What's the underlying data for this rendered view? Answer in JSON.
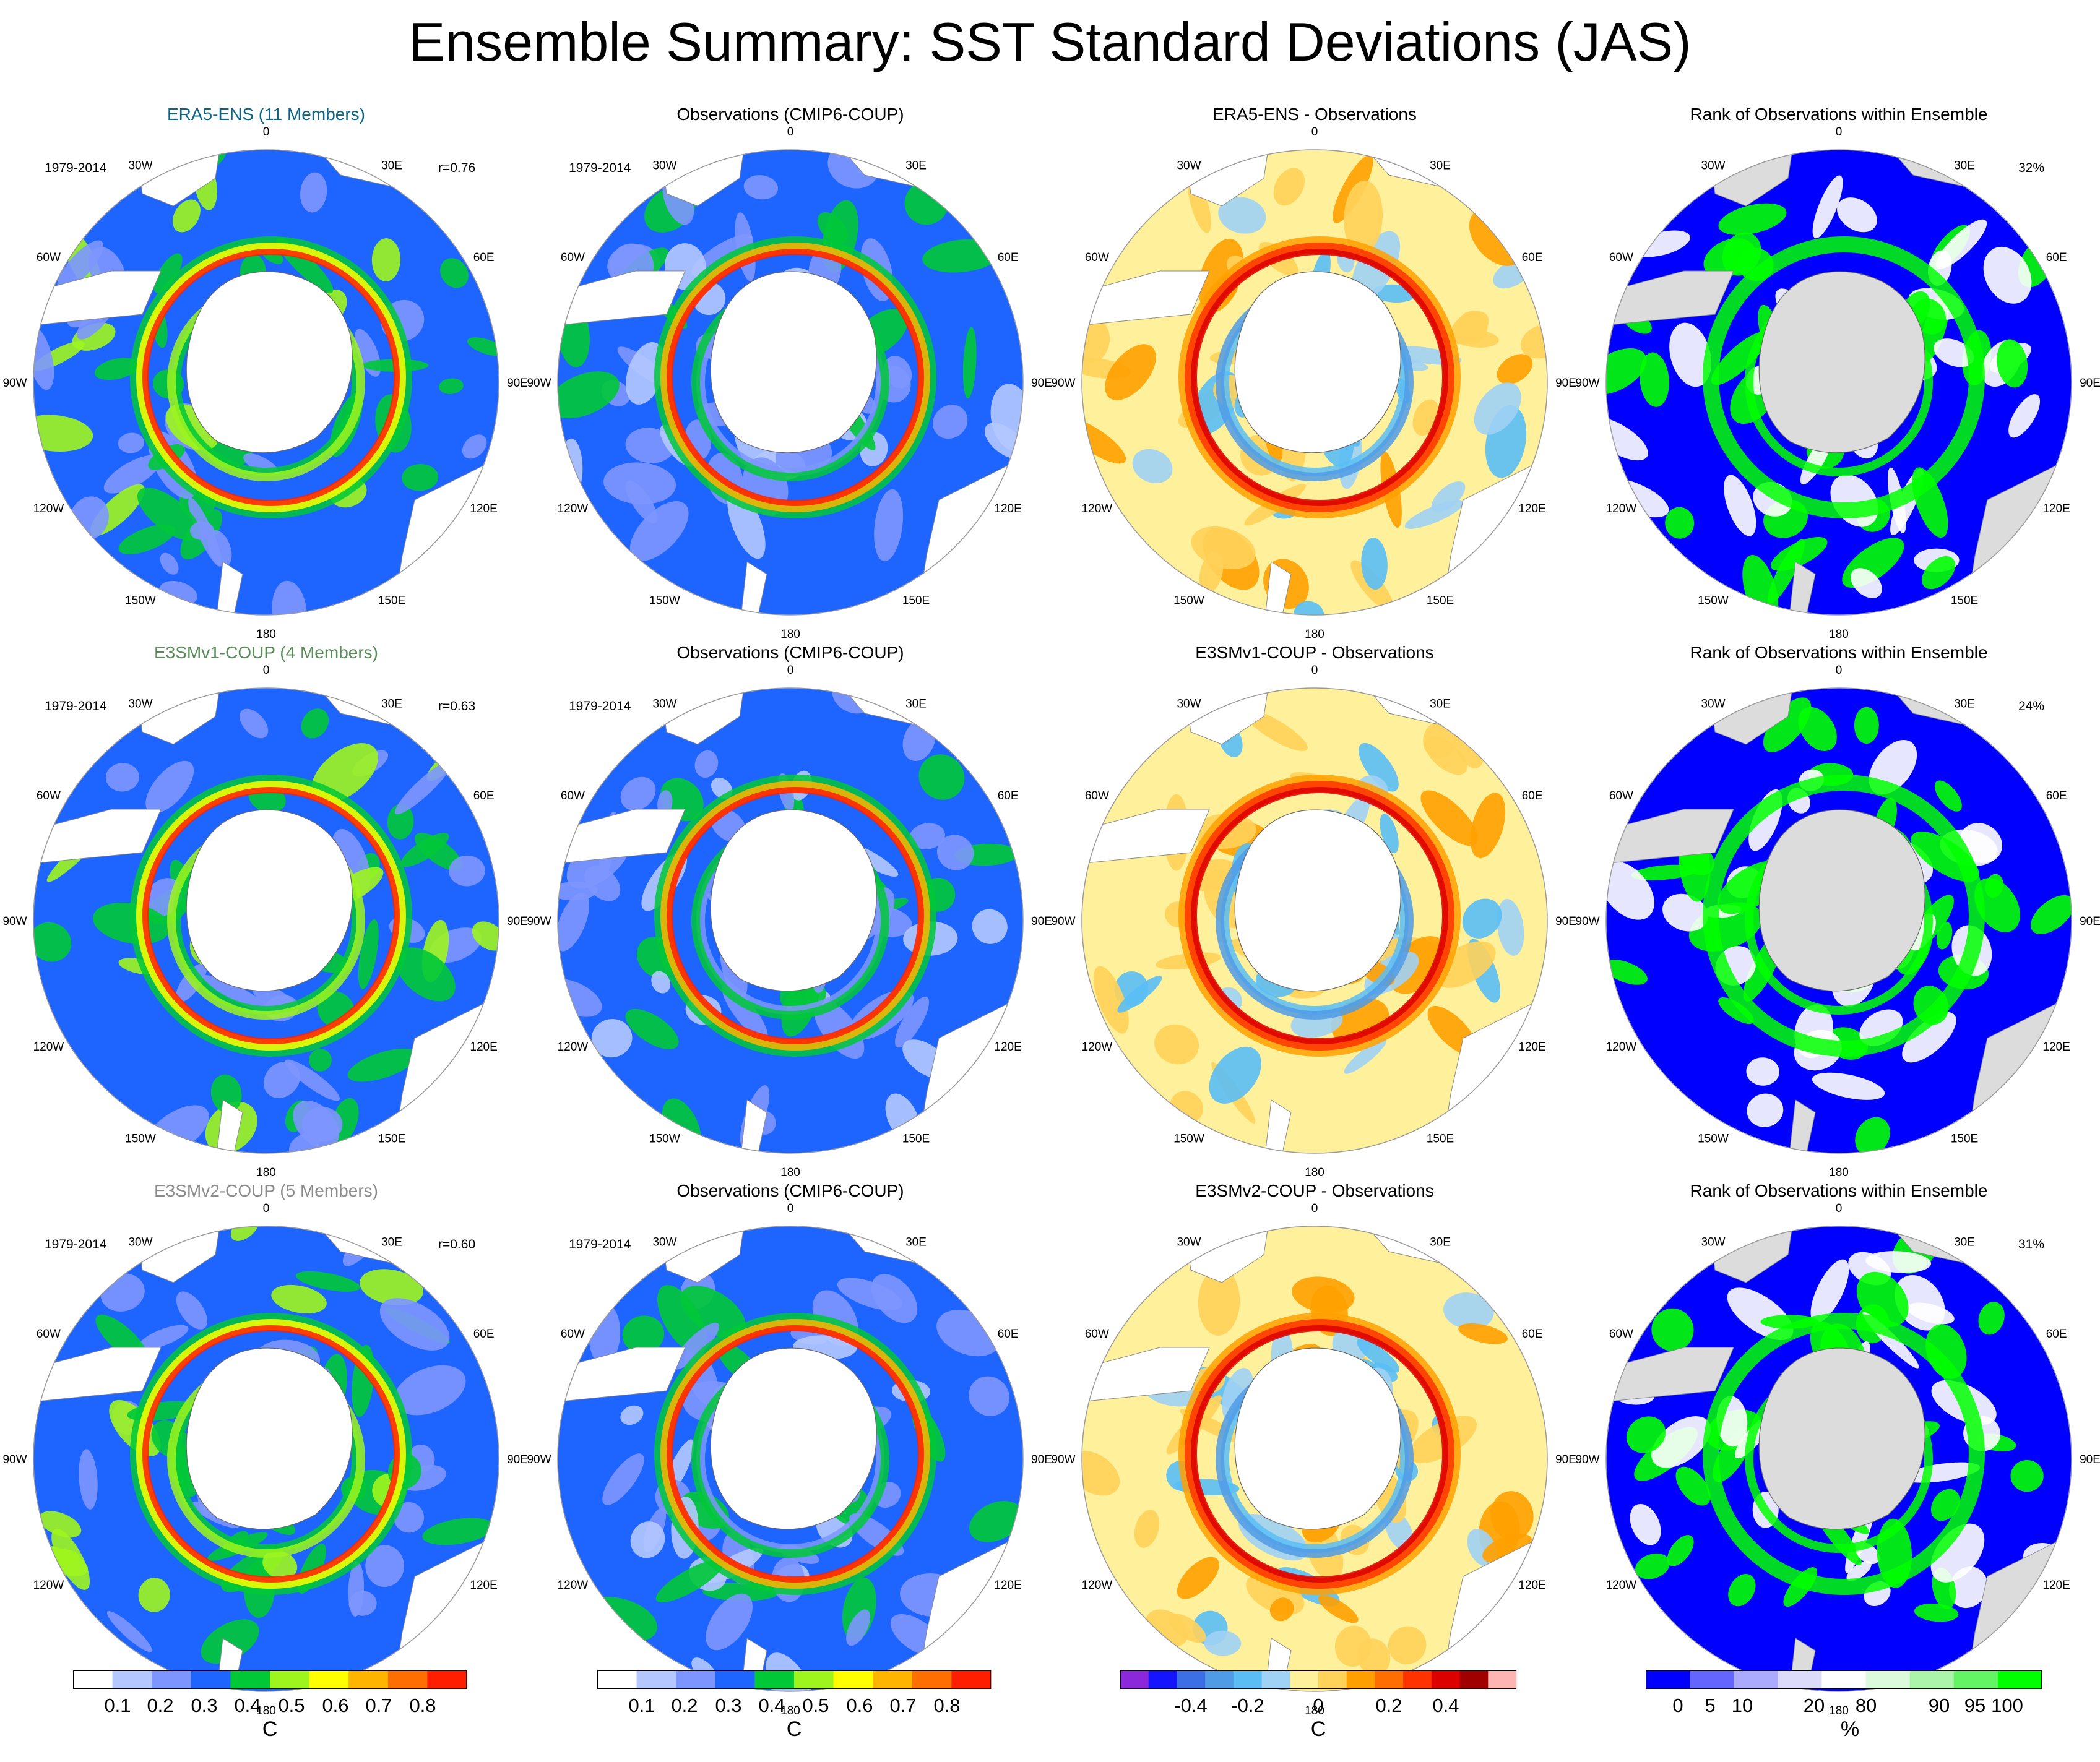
{
  "figure": {
    "title": "Ensemble Summary: SST Standard Deviations (JAS)"
  },
  "labels": {
    "lon": [
      "0",
      "30E",
      "60E",
      "90E",
      "120E",
      "150E",
      "180",
      "150W",
      "120W",
      "90W",
      "60W",
      "30W"
    ]
  },
  "palettes": {
    "sd": [
      "#ffffff",
      "#b4c8ff",
      "#7d96ff",
      "#1e64ff",
      "#00c837",
      "#9ef51e",
      "#ffff00",
      "#ffb400",
      "#ff6e00",
      "#ff1e00"
    ],
    "diff": [
      "#8c28dc",
      "#1414ff",
      "#3c6ee6",
      "#509be6",
      "#5abef5",
      "#a0d2f5",
      "#fff09b",
      "#ffd25a",
      "#ffa000",
      "#ff6e00",
      "#ff3200",
      "#dc0000",
      "#a00000",
      "#ffb4b4"
    ],
    "rank": [
      "#0000ff",
      "#6464ff",
      "#aaaaff",
      "#dcdcfa",
      "#ffffff",
      "#dcfadc",
      "#aaf5aa",
      "#64f564",
      "#00ff00"
    ],
    "ocean_rank_bg": "#0000ff",
    "land": "#ffffff",
    "land_rank": "#dcdcdc"
  },
  "rows": [
    {
      "model": {
        "title": "ERA5-ENS (11 Members)",
        "title_color": "#0e6483",
        "period": "1979-2014",
        "corr": "r=0.76"
      },
      "obs": {
        "title": "Observations (CMIP6-COUP)",
        "period": "1979-2014"
      },
      "diff": {
        "title": "ERA5-ENS - Observations"
      },
      "rank": {
        "title": "Rank of Observations within Ensemble",
        "pct": "32%"
      }
    },
    {
      "model": {
        "title": "E3SMv1-COUP (4 Members)",
        "title_color": "#5a8c5a",
        "period": "1979-2014",
        "corr": "r=0.63"
      },
      "obs": {
        "title": "Observations (CMIP6-COUP)",
        "period": "1979-2014"
      },
      "diff": {
        "title": "E3SMv1-COUP - Observations"
      },
      "rank": {
        "title": "Rank of Observations within Ensemble",
        "pct": "24%"
      }
    },
    {
      "model": {
        "title": "E3SMv2-COUP (5 Members)",
        "title_color": "#8c8c8c",
        "period": "1979-2014",
        "corr": "r=0.60"
      },
      "obs": {
        "title": "Observations (CMIP6-COUP)",
        "period": "1979-2014"
      },
      "diff": {
        "title": "E3SMv2-COUP - Observations"
      },
      "rank": {
        "title": "Rank of Observations within Ensemble",
        "pct": "31%"
      }
    }
  ],
  "colorbars": [
    {
      "labels": [
        "0.1",
        "0.2",
        "0.3",
        "0.4",
        "0.5",
        "0.6",
        "0.7",
        "0.8"
      ],
      "unit": "C"
    },
    {
      "labels": [
        "0.1",
        "0.2",
        "0.3",
        "0.4",
        "0.5",
        "0.6",
        "0.7",
        "0.8"
      ],
      "unit": "C"
    },
    {
      "labels": [
        "-0.4",
        "-0.2",
        "0",
        "0.2",
        "0.4"
      ],
      "unit": "C"
    },
    {
      "labels": [
        "0",
        "5",
        "10",
        "20",
        "80",
        "90",
        "95",
        "100"
      ],
      "unit": "%"
    }
  ],
  "chart_data": [
    {
      "type": "heatmap",
      "projection": "south-polar stereographic",
      "panels": [
        "ERA5-ENS (11 Members)",
        "Observations (CMIP6-COUP)",
        "ERA5-ENS - Observations",
        "Rank of Observations within Ensemble",
        "E3SMv1-COUP (4 Members)",
        "Observations (CMIP6-COUP)",
        "E3SMv1-COUP - Observations",
        "Rank of Observations within Ensemble",
        "E3SMv2-COUP (5 Members)",
        "Observations (CMIP6-COUP)",
        "E3SMv2-COUP - Observations",
        "Rank of Observations within Ensemble"
      ],
      "sd_levels": [
        0.1,
        0.2,
        0.3,
        0.4,
        0.5,
        0.6,
        0.7,
        0.8
      ],
      "diff_levels": [
        -0.5,
        -0.4,
        -0.3,
        -0.2,
        -0.1,
        -0.05,
        0,
        0.05,
        0.1,
        0.2,
        0.3,
        0.4,
        0.5
      ],
      "rank_levels": [
        0,
        5,
        10,
        20,
        80,
        90,
        95,
        100
      ],
      "pattern_correlation": {
        "ERA5-ENS": 0.76,
        "E3SMv1-COUP": 0.63,
        "E3SMv2-COUP": 0.6
      },
      "rank_pct": {
        "ERA5-ENS": 32,
        "E3SMv1-COUP": 24,
        "E3SMv2-COUP": 31
      }
    }
  ]
}
